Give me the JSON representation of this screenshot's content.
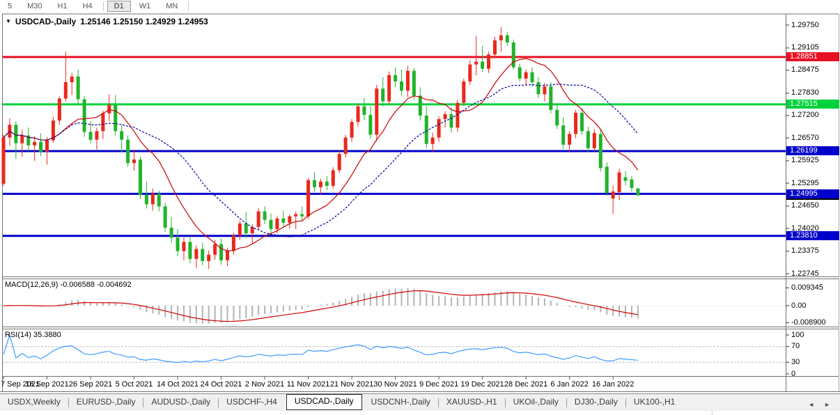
{
  "toolbar": {
    "timeframes": [
      "5",
      "M30",
      "H1",
      "H4",
      "D1",
      "W1",
      "MN"
    ],
    "active": "D1"
  },
  "chart": {
    "title": "USDCAD-,Daily",
    "ohlc_values": "1.25146 1.25150 1.24929 1.24953",
    "open": "1.25146",
    "high": "1.25150",
    "low": "1.24929",
    "close": "1.24953"
  },
  "price_axis": {
    "labels": [
      "1.29750",
      "1.29105",
      "1.28475",
      "1.27830",
      "1.27200",
      "1.26570",
      "1.25925",
      "1.25295",
      "1.24650",
      "1.24020",
      "1.23375",
      "1.22745"
    ]
  },
  "levels": [
    {
      "value": 1.28851,
      "label": "1.28851",
      "color": "#e81123"
    },
    {
      "value": 1.27515,
      "label": "1.27515",
      "color": "#00d23c"
    },
    {
      "value": 1.26199,
      "label": "1.26199",
      "color": "#0000cc"
    },
    {
      "value": 1.24995,
      "label": "1.24995",
      "color": "#0000cc"
    },
    {
      "value": 1.2381,
      "label": "1.23810",
      "color": "#0000cc"
    }
  ],
  "current_price": {
    "value": 1.24953,
    "label": "1.24953",
    "color": "#000000"
  },
  "date_axis": [
    "7 Sep 2021",
    "16 Sep 2021",
    "26 Sep 2021",
    "5 Oct 2021",
    "14 Oct 2021",
    "24 Oct 2021",
    "2 Nov 2021",
    "11 Nov 2021",
    "21 Nov 2021",
    "30 Nov 2021",
    "9 Dec 2021",
    "19 Dec 2021",
    "28 Dec 2021",
    "6 Jan 2022",
    "16 Jan 2022"
  ],
  "macd": {
    "label": "MACD(12,26,9) -0.006588 -0.004692",
    "axis": [
      "0.009345",
      "0.00",
      "-0.008900"
    ]
  },
  "rsi": {
    "label": "RSI(14) 35.3880",
    "axis": [
      "100",
      "70",
      "30",
      "0"
    ],
    "levels": [
      70,
      30
    ]
  },
  "tabs": {
    "items": [
      "USDX,Weekly",
      "EURUSD-,Daily",
      "AUDUSD-,Daily",
      "USDCHF-,H4",
      "USDCAD-,Daily",
      "USDCNH-,Daily",
      "XAUUSD-,H1",
      "UKOil-,Daily",
      "DJ30-,Daily",
      "UK100-,H1"
    ],
    "active_index": 4,
    "scroll_left_icon": "◄",
    "scroll_right_icon": "►"
  },
  "colors": {
    "candle_up": "#e8291d",
    "candle_down": "#21b32b",
    "line_red": "#e81123",
    "line_green": "#00d23c",
    "line_blue": "#0000d8",
    "ma_fast": "#cc0000",
    "ma_slow": "#0000a0",
    "macd_hist": "#b4b4b4",
    "macd_signal": "#d00000",
    "rsi_line": "#3e9bff"
  },
  "chart_data": {
    "type": "candlestick",
    "note": "OHLC per bar, 7 Sep 2021 - 19 Jan 2022 daily",
    "candles": [
      [
        1.2528,
        1.2666,
        1.2522,
        1.2658
      ],
      [
        1.2658,
        1.2712,
        1.2634,
        1.2694
      ],
      [
        1.2694,
        1.2704,
        1.2598,
        1.2642
      ],
      [
        1.2642,
        1.268,
        1.2604,
        1.2664
      ],
      [
        1.2664,
        1.2686,
        1.262,
        1.2636
      ],
      [
        1.2636,
        1.2662,
        1.2592,
        1.2646
      ],
      [
        1.2646,
        1.267,
        1.2606,
        1.2618
      ],
      [
        1.2618,
        1.266,
        1.2582,
        1.265
      ],
      [
        1.265,
        1.2716,
        1.2644,
        1.2706
      ],
      [
        1.2706,
        1.2774,
        1.2694,
        1.2768
      ],
      [
        1.2768,
        1.29,
        1.276,
        1.2814
      ],
      [
        1.2814,
        1.284,
        1.2778,
        1.283
      ],
      [
        1.283,
        1.285,
        1.2754,
        1.2766
      ],
      [
        1.2766,
        1.2774,
        1.266,
        1.2674
      ],
      [
        1.2674,
        1.2704,
        1.2642,
        1.2652
      ],
      [
        1.2652,
        1.2686,
        1.2624,
        1.2676
      ],
      [
        1.2676,
        1.2734,
        1.2654,
        1.2726
      ],
      [
        1.2726,
        1.278,
        1.2704,
        1.275
      ],
      [
        1.275,
        1.2778,
        1.2664,
        1.2676
      ],
      [
        1.2676,
        1.2694,
        1.2618,
        1.2652
      ],
      [
        1.2652,
        1.2664,
        1.2576,
        1.2586
      ],
      [
        1.2586,
        1.2624,
        1.2564,
        1.2596
      ],
      [
        1.2596,
        1.2604,
        1.2484,
        1.2496
      ],
      [
        1.2496,
        1.2534,
        1.2458,
        1.247
      ],
      [
        1.247,
        1.2514,
        1.2452,
        1.25
      ],
      [
        1.25,
        1.2508,
        1.245,
        1.2464
      ],
      [
        1.2464,
        1.2474,
        1.2392,
        1.2404
      ],
      [
        1.2404,
        1.2434,
        1.2362,
        1.2376
      ],
      [
        1.2376,
        1.24,
        1.2324,
        1.2338
      ],
      [
        1.2338,
        1.2376,
        1.2312,
        1.2364
      ],
      [
        1.2364,
        1.238,
        1.2304,
        1.2316
      ],
      [
        1.2316,
        1.2354,
        1.229,
        1.2344
      ],
      [
        1.2344,
        1.2362,
        1.2298,
        1.231
      ],
      [
        1.231,
        1.234,
        1.2288,
        1.2328
      ],
      [
        1.2328,
        1.237,
        1.2314,
        1.2358
      ],
      [
        1.2358,
        1.2374,
        1.23,
        1.2312
      ],
      [
        1.2312,
        1.2348,
        1.2296,
        1.234
      ],
      [
        1.234,
        1.239,
        1.2328,
        1.2382
      ],
      [
        1.2382,
        1.2424,
        1.237,
        1.2416
      ],
      [
        1.2416,
        1.2448,
        1.2374,
        1.2388
      ],
      [
        1.2388,
        1.2414,
        1.236,
        1.2406
      ],
      [
        1.2406,
        1.246,
        1.2398,
        1.245
      ],
      [
        1.245,
        1.2464,
        1.2414,
        1.2426
      ],
      [
        1.2426,
        1.2444,
        1.239,
        1.24
      ],
      [
        1.24,
        1.2438,
        1.2388,
        1.243
      ],
      [
        1.243,
        1.2452,
        1.2408,
        1.2418
      ],
      [
        1.2418,
        1.2442,
        1.2402,
        1.2436
      ],
      [
        1.2436,
        1.245,
        1.24,
        1.2442
      ],
      [
        1.2442,
        1.2464,
        1.2422,
        1.2436
      ],
      [
        1.2436,
        1.2544,
        1.2428,
        1.2538
      ],
      [
        1.2538,
        1.256,
        1.2506,
        1.2518
      ],
      [
        1.2518,
        1.2542,
        1.2498,
        1.2534
      ],
      [
        1.2534,
        1.255,
        1.251,
        1.2522
      ],
      [
        1.2522,
        1.2574,
        1.2514,
        1.2566
      ],
      [
        1.2566,
        1.262,
        1.2558,
        1.2612
      ],
      [
        1.2612,
        1.2666,
        1.2602,
        1.2658
      ],
      [
        1.2658,
        1.271,
        1.2646,
        1.2702
      ],
      [
        1.2702,
        1.2754,
        1.2688,
        1.2746
      ],
      [
        1.2746,
        1.277,
        1.2708,
        1.2722
      ],
      [
        1.2722,
        1.2746,
        1.2654,
        1.2666
      ],
      [
        1.2666,
        1.2806,
        1.2648,
        1.2796
      ],
      [
        1.2796,
        1.2828,
        1.2746,
        1.276
      ],
      [
        1.276,
        1.2844,
        1.2752,
        1.2834
      ],
      [
        1.2834,
        1.2856,
        1.28,
        1.2816
      ],
      [
        1.2816,
        1.285,
        1.2776,
        1.279
      ],
      [
        1.279,
        1.286,
        1.2772,
        1.2846
      ],
      [
        1.2846,
        1.2854,
        1.2766,
        1.2776
      ],
      [
        1.2776,
        1.28,
        1.2706,
        1.272
      ],
      [
        1.272,
        1.2746,
        1.2628,
        1.264
      ],
      [
        1.264,
        1.2672,
        1.2616,
        1.2658
      ],
      [
        1.2658,
        1.2718,
        1.2646,
        1.271
      ],
      [
        1.271,
        1.2732,
        1.2686,
        1.2724
      ],
      [
        1.2724,
        1.2742,
        1.2672,
        1.2686
      ],
      [
        1.2686,
        1.2764,
        1.2674,
        1.2756
      ],
      [
        1.2756,
        1.2824,
        1.2748,
        1.2816
      ],
      [
        1.2816,
        1.2876,
        1.2806,
        1.2864
      ],
      [
        1.2864,
        1.2944,
        1.2834,
        1.2872
      ],
      [
        1.2872,
        1.2916,
        1.2842,
        1.2852
      ],
      [
        1.2852,
        1.29,
        1.284,
        1.2892
      ],
      [
        1.2892,
        1.2942,
        1.2882,
        1.2932
      ],
      [
        1.2932,
        1.2969,
        1.2899,
        1.2946
      ],
      [
        1.2946,
        1.2956,
        1.2916,
        1.2926
      ],
      [
        1.2926,
        1.2934,
        1.285,
        1.2856
      ],
      [
        1.2856,
        1.2866,
        1.2816,
        1.2824
      ],
      [
        1.2824,
        1.285,
        1.2806,
        1.2842
      ],
      [
        1.2842,
        1.2856,
        1.2802,
        1.2814
      ],
      [
        1.2814,
        1.2828,
        1.277,
        1.278
      ],
      [
        1.278,
        1.2812,
        1.276,
        1.2802
      ],
      [
        1.2802,
        1.2814,
        1.2726,
        1.2736
      ],
      [
        1.2736,
        1.2752,
        1.2682,
        1.2692
      ],
      [
        1.2692,
        1.2716,
        1.2626,
        1.2638
      ],
      [
        1.2638,
        1.2676,
        1.2616,
        1.2668
      ],
      [
        1.2668,
        1.2736,
        1.2656,
        1.2728
      ],
      [
        1.2728,
        1.274,
        1.2666,
        1.2676
      ],
      [
        1.2676,
        1.2688,
        1.2616,
        1.2628
      ],
      [
        1.2628,
        1.2682,
        1.262,
        1.2671
      ],
      [
        1.2668,
        1.268,
        1.2562,
        1.2572
      ],
      [
        1.2576,
        1.2588,
        1.2494,
        1.2502
      ],
      [
        1.2486,
        1.2522,
        1.2443,
        1.2506
      ],
      [
        1.2504,
        1.257,
        1.2482,
        1.256
      ],
      [
        1.2546,
        1.2564,
        1.2524,
        1.2536
      ],
      [
        1.254,
        1.255,
        1.2506,
        1.2516
      ],
      [
        1.25146,
        1.2515,
        1.24929,
        1.24953
      ]
    ]
  }
}
